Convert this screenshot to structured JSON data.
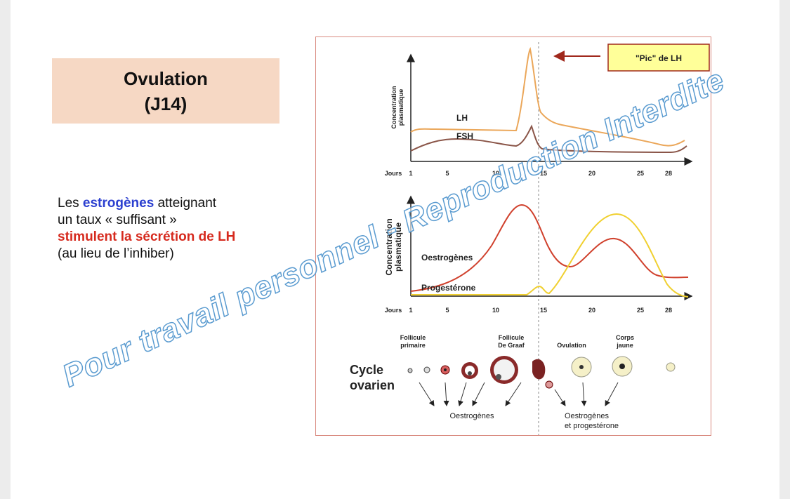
{
  "slide": {
    "title": [
      "Ovulation",
      "(J14)"
    ],
    "text": {
      "line1": [
        "Les ",
        "estrogènes",
        " atteignant"
      ],
      "line2": "un taux « suffisant »",
      "line3": "stimulent la sécrétion de LH",
      "line4": "(au lieu de l’inhiber)"
    },
    "watermark": "Pour travail personnel - Reproduction Interdite"
  },
  "figure": {
    "callout": "\"Pic\" de LH",
    "top_chart": {
      "y_label": [
        "Concentration",
        "plasmatique"
      ],
      "x_label": "Jours",
      "days": [
        "1",
        "5",
        "10",
        "15",
        "20",
        "25",
        "28"
      ],
      "curves": [
        "LH",
        "FSH"
      ]
    },
    "bottom_chart": {
      "y_label": [
        "Concentration",
        "plasmatique"
      ],
      "x_label": "Jours",
      "days": [
        "1",
        "5",
        "10",
        "15",
        "20",
        "25",
        "28"
      ],
      "curves": [
        "Oestrogènes",
        "Progestérone"
      ]
    },
    "ovarian": {
      "title": [
        "Cycle",
        "ovarien"
      ],
      "stages": [
        [
          "Follicule",
          "primaire"
        ],
        [
          "Follicule",
          "De Graaf"
        ],
        [
          "Ovulation"
        ],
        [
          "Corps",
          "jaune"
        ]
      ],
      "hormones_1": "Oestrogènes",
      "hormones_2": [
        "Oestrogènes",
        "et progestérone"
      ]
    }
  }
}
